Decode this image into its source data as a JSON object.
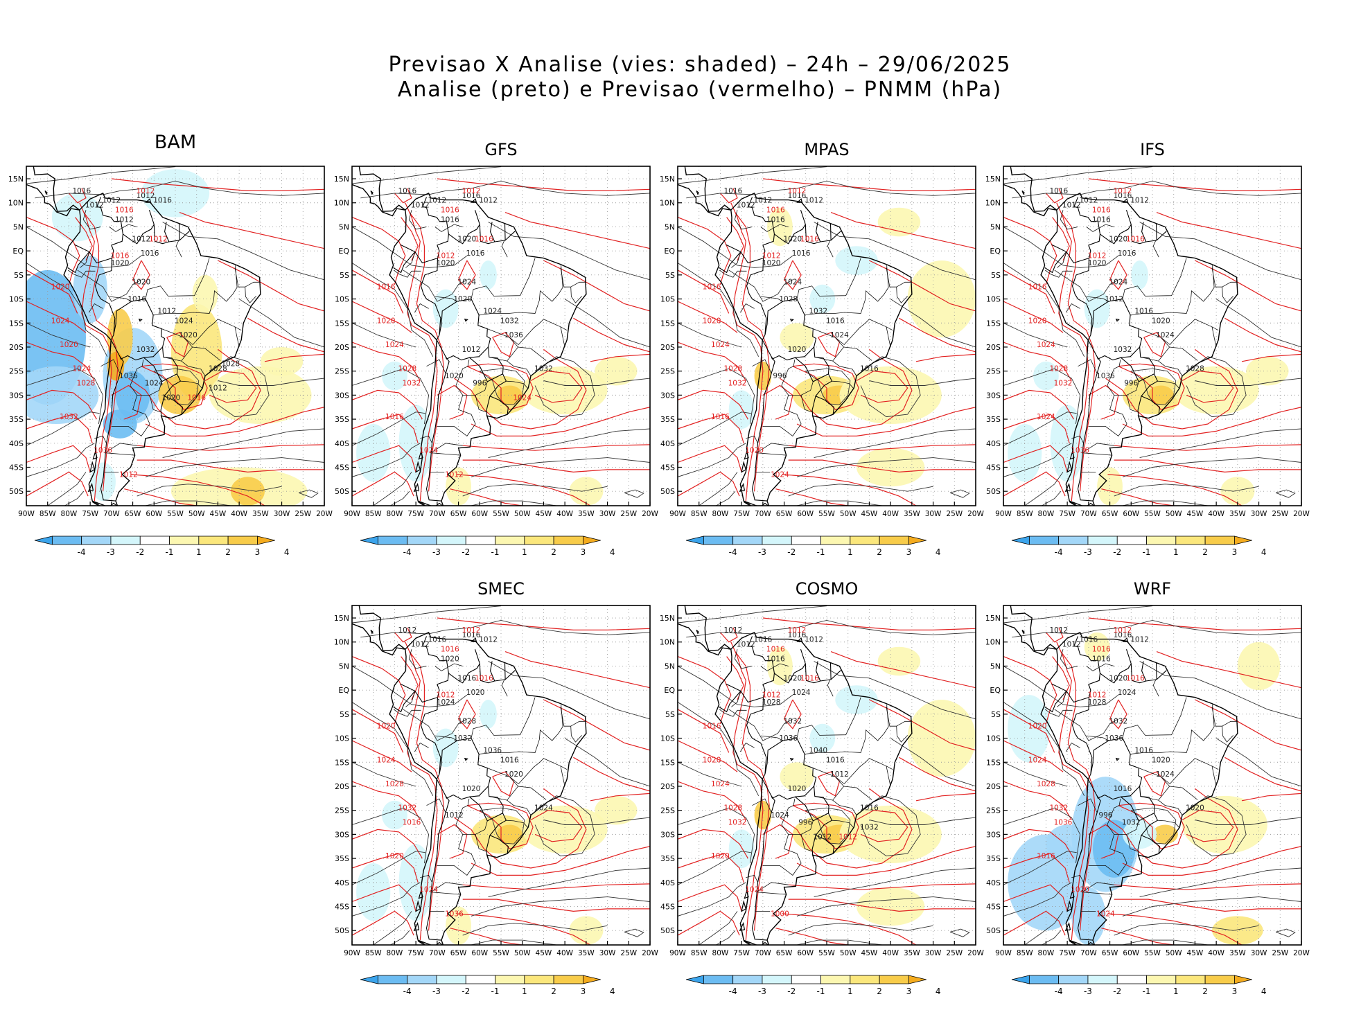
{
  "title_line1": "Previsao X Analise (vies: shaded) – 24h – 29/06/2025",
  "title_line2": "Analise (preto) e Previsao (vermelho) – PNMM (hPa)",
  "lat_labels": [
    "15N",
    "10N",
    "5N",
    "EQ",
    "5S",
    "10S",
    "15S",
    "20S",
    "25S",
    "30S",
    "35S",
    "40S",
    "45S",
    "50S"
  ],
  "lon_labels": [
    "90W",
    "85W",
    "80W",
    "75W",
    "70W",
    "65W",
    "60W",
    "55W",
    "50W",
    "45W",
    "40W",
    "35W",
    "30W",
    "25W",
    "20W"
  ],
  "colorbar": {
    "labels": [
      "-4",
      "-3",
      "-2",
      "-1",
      "1",
      "2",
      "3",
      "4"
    ],
    "colors": [
      "#3ba4ec",
      "#6cbcf2",
      "#a3d7f8",
      "#d4f6fb",
      "#ffffff",
      "#fcf7b1",
      "#fbe77c",
      "#f8cc4a",
      "#f5ac1e"
    ]
  },
  "colors": {
    "analysis": "#1a1a1a",
    "forecast": "#e22222",
    "coast": "#000000"
  },
  "panels": [
    {
      "name": "BAM",
      "bias": "mixed-neg",
      "black": [
        "1016",
        "1012",
        "1012",
        "1012",
        "1016",
        "1012",
        "1012",
        "1016",
        "1020",
        "1020",
        "1016",
        "1012",
        "1024",
        "1020",
        "1028",
        "1032",
        "1036",
        "1024",
        "1020",
        "1012",
        "1028"
      ],
      "red": [
        "1016",
        "1012",
        "1012",
        "1016",
        "1020",
        "1024",
        "1020",
        "1024",
        "1028",
        "1032",
        "1036",
        "1012",
        "1016"
      ]
    },
    {
      "name": "GFS",
      "bias": "light",
      "black": [
        "1016",
        "1012",
        "1012",
        "1016",
        "1012",
        "1016",
        "1020",
        "1016",
        "1020",
        "1024",
        "1020",
        "1024",
        "1032",
        "1036",
        "1032",
        "1012",
        "1020",
        "996"
      ],
      "red": [
        "1016",
        "1012",
        "1016",
        "1012",
        "1016",
        "1020",
        "1024",
        "1028",
        "1032",
        "1016",
        "1024",
        "1012",
        "1024"
      ]
    },
    {
      "name": "MPAS",
      "bias": "pos",
      "black": [
        "1016",
        "1012",
        "1012",
        "1016",
        "1012",
        "1016",
        "1020",
        "1016",
        "1020",
        "1024",
        "1028",
        "1032",
        "1016",
        "1024",
        "1016",
        "1020",
        "996"
      ],
      "red": [
        "1016",
        "1012",
        "1016",
        "1012",
        "1016",
        "1020",
        "1024",
        "1028",
        "1032",
        "1016",
        "1020",
        "1024"
      ]
    },
    {
      "name": "IFS",
      "bias": "light",
      "black": [
        "1016",
        "1012",
        "1012",
        "1016",
        "1012",
        "1016",
        "1020",
        "1016",
        "1020",
        "1024",
        "1012",
        "1016",
        "1020",
        "1024",
        "1028",
        "1032",
        "1036",
        "996"
      ],
      "red": [
        "1016",
        "1012",
        "1016",
        "1012",
        "1016",
        "1020",
        "1024",
        "1028",
        "1032",
        "1024",
        "1036"
      ]
    },
    {
      "name": "SMEC",
      "bias": "light",
      "black": [
        "1012",
        "1016",
        "1012",
        "1016",
        "1012",
        "1020",
        "1016",
        "1020",
        "1024",
        "1028",
        "1032",
        "1036",
        "1016",
        "1020",
        "1024",
        "1020",
        "1012"
      ],
      "red": [
        "1016",
        "1012",
        "1016",
        "1012",
        "1020",
        "1024",
        "1028",
        "1032",
        "1016",
        "1020",
        "1024",
        "1036"
      ]
    },
    {
      "name": "COSMO",
      "bias": "pos",
      "black": [
        "1012",
        "1016",
        "1012",
        "1016",
        "1012",
        "1016",
        "1020",
        "1024",
        "1028",
        "1032",
        "1036",
        "1040",
        "1016",
        "1012",
        "1016",
        "1020",
        "1024",
        "996",
        "1012",
        "1032"
      ],
      "red": [
        "1016",
        "1012",
        "1016",
        "1012",
        "1016",
        "1020",
        "1024",
        "1028",
        "1032",
        "1020",
        "1024",
        "1000",
        "1012"
      ]
    },
    {
      "name": "WRF",
      "bias": "neg",
      "black": [
        "1012",
        "1016",
        "1012",
        "1016",
        "1012",
        "1016",
        "1020",
        "1024",
        "1028",
        "1032",
        "1036",
        "1016",
        "1020",
        "1024",
        "1020",
        "1016",
        "996",
        "1032"
      ],
      "red": [
        "1016",
        "1012",
        "1016",
        "1012",
        "1020",
        "1024",
        "1028",
        "1032",
        "1036",
        "1016",
        "1020",
        "1024"
      ]
    }
  ]
}
